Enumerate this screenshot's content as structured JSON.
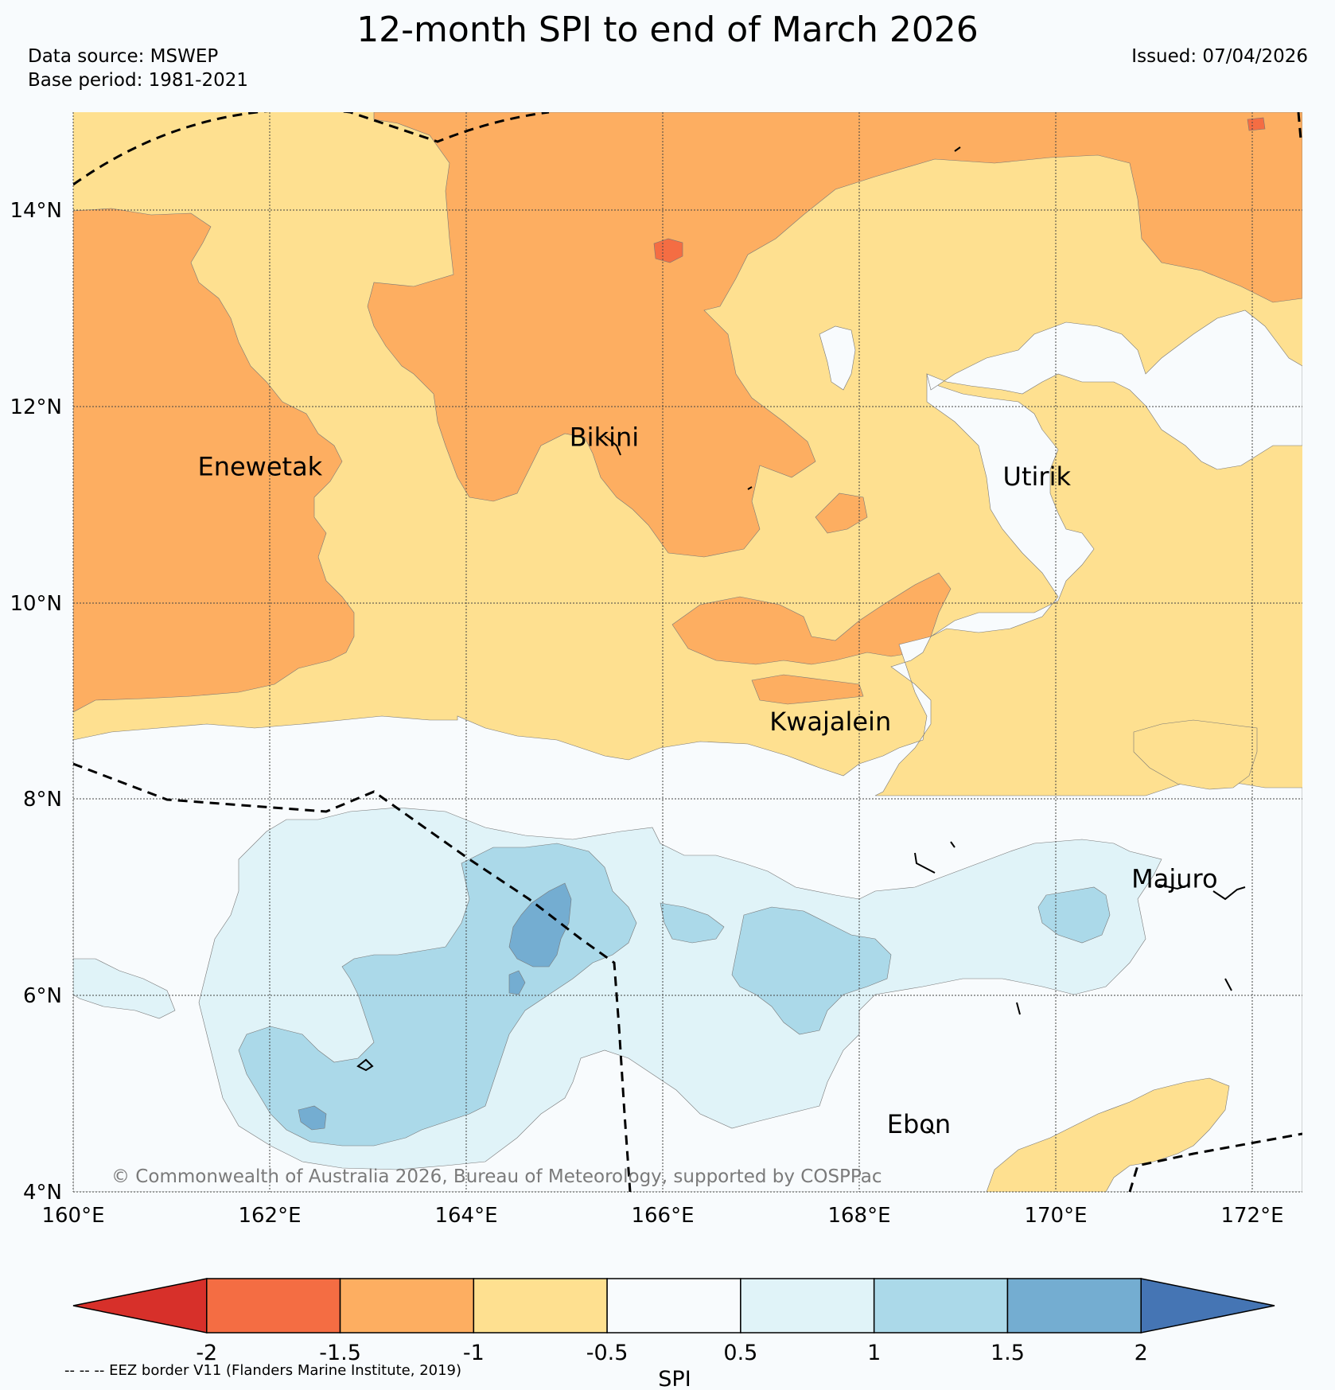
{
  "header": {
    "title": "12-month SPI to end of March 2026",
    "data_source": "Data source: MSWEP",
    "base_period": "Base period: 1981-2021",
    "issued": "Issued: 07/04/2026"
  },
  "map": {
    "lon_range": [
      160,
      172.5
    ],
    "lat_range": [
      4,
      15
    ],
    "lon_ticks": [
      "160°E",
      "162°E",
      "164°E",
      "166°E",
      "168°E",
      "170°E",
      "172°E"
    ],
    "lat_ticks": [
      "14°N",
      "12°N",
      "10°N",
      "8°N",
      "6°N",
      "4°N"
    ],
    "places": [
      {
        "name": "Enewetak",
        "lon": 161.9,
        "lat": 11.3
      },
      {
        "name": "Bikini",
        "lon": 165.4,
        "lat": 11.6
      },
      {
        "name": "Utirik",
        "lon": 169.8,
        "lat": 11.2
      },
      {
        "name": "Kwajalein",
        "lon": 167.7,
        "lat": 8.7
      },
      {
        "name": "Majuro",
        "lon": 171.2,
        "lat": 7.1
      },
      {
        "name": "Ebon",
        "lon": 168.6,
        "lat": 4.6
      }
    ],
    "copyright": "© Commonwealth of Australia 2026, Bureau of Meteorology, supported by COSPPac"
  },
  "colorbar": {
    "title": "SPI",
    "labels": [
      "-2",
      "-1.5",
      "-1",
      "-0.5",
      "0.5",
      "1",
      "1.5",
      "2"
    ],
    "colors": [
      "#d7302a",
      "#f46d43",
      "#fdae61",
      "#fee090",
      "#f8fbfd",
      "#e0f3f8",
      "#abd9e9",
      "#74add1",
      "#4575b4"
    ]
  },
  "footnote": "-- -- -- EEZ border V11 (Flanders Marine Institute, 2019)"
}
